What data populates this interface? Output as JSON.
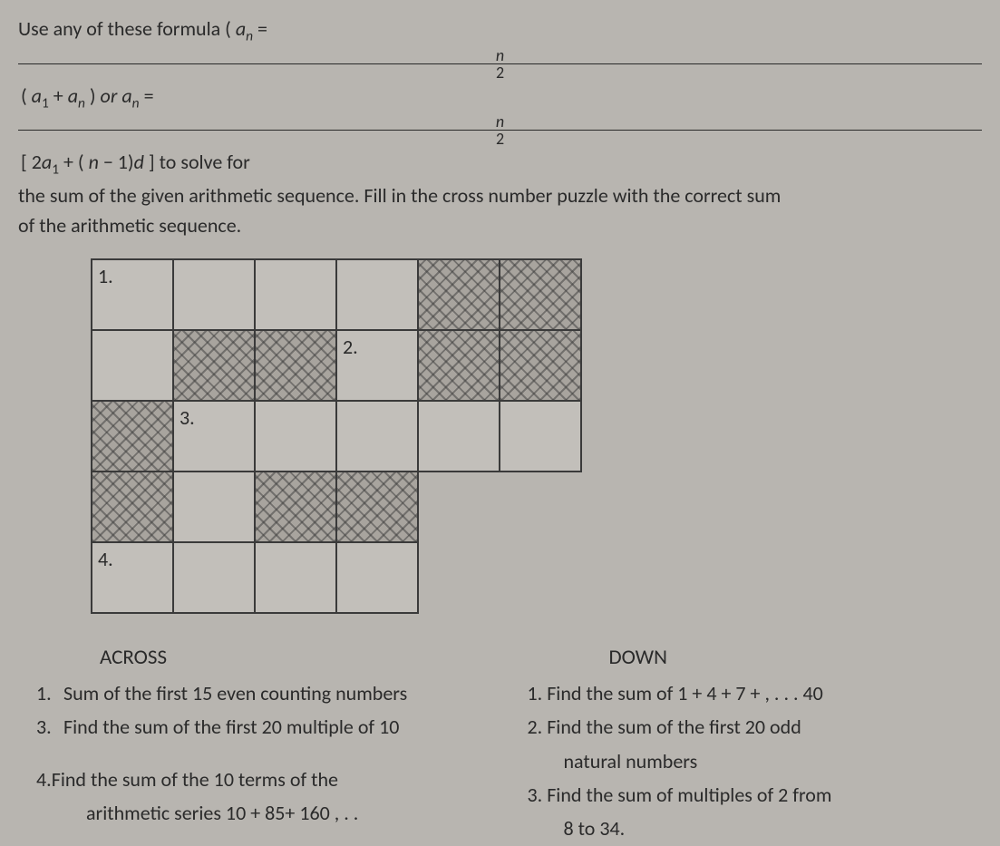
{
  "instruction": {
    "part1": "Use any of these formula ( ",
    "an": "a",
    "sub_n": "n",
    "eq": " = ",
    "frac_n": "n",
    "frac_2": "2",
    "paren_open": " ( ",
    "a1": "a",
    "sub_1": "1",
    "plus": " + ",
    "an2": "a",
    "sub_n2": "n",
    "paren_close": " ) ",
    "or": " or ",
    "an3": "a",
    "sub_n3": "n",
    "eq2": " = ",
    "bracket_open": " [ 2",
    "a1_2": "a",
    "sub_1_2": "1",
    "plus2": " + ( ",
    "n_minus": "n",
    "minus_close": " − 1)",
    "d": "d",
    "bracket_close": " ]  to solve for",
    "line2": "the sum of the given arithmetic sequence. Fill in the cross number puzzle with the correct sum",
    "line3": "of the arithmetic sequence."
  },
  "puzzle": {
    "grid": [
      [
        "open",
        "open",
        "open",
        "open",
        "blocked",
        "blocked"
      ],
      [
        "open",
        "blocked",
        "blocked",
        "open",
        "blocked",
        "blocked"
      ],
      [
        "blocked",
        "open",
        "open",
        "open",
        "open",
        "open"
      ],
      [
        "blocked",
        "open",
        "blocked",
        "blocked",
        "none",
        "none"
      ],
      [
        "open",
        "open",
        "open",
        "open",
        "none",
        "none"
      ]
    ],
    "clue_positions": {
      "1": [
        0,
        0
      ],
      "2": [
        1,
        3
      ],
      "3": [
        2,
        1
      ],
      "4": [
        4,
        0
      ]
    },
    "clue_labels": {
      "1": "1.",
      "2": "2.",
      "3": "3.",
      "4": "4."
    }
  },
  "clues": {
    "across_header": "ACROSS",
    "down_header": "DOWN",
    "across": [
      {
        "num": "1.",
        "text": "Sum of the first 15 even counting numbers"
      },
      {
        "num": "3.",
        "text": "Find the sum of the first 20 multiple of 10"
      },
      {
        "num": "4.",
        "text": "Find the sum of the 10 terms of the",
        "text2": "arithmetic series 10 + 85+ 160 , .  ."
      }
    ],
    "down": [
      {
        "num": "1.",
        "text": "Find the sum of 1 + 4 + 7 + , .  .  . 40"
      },
      {
        "num": "2.",
        "text": "Find the sum of the first 20 odd",
        "text2": "natural numbers"
      },
      {
        "num": "3.",
        "text": "Find the sum of multiples of 2 from",
        "text2": "8 to 34."
      }
    ]
  }
}
